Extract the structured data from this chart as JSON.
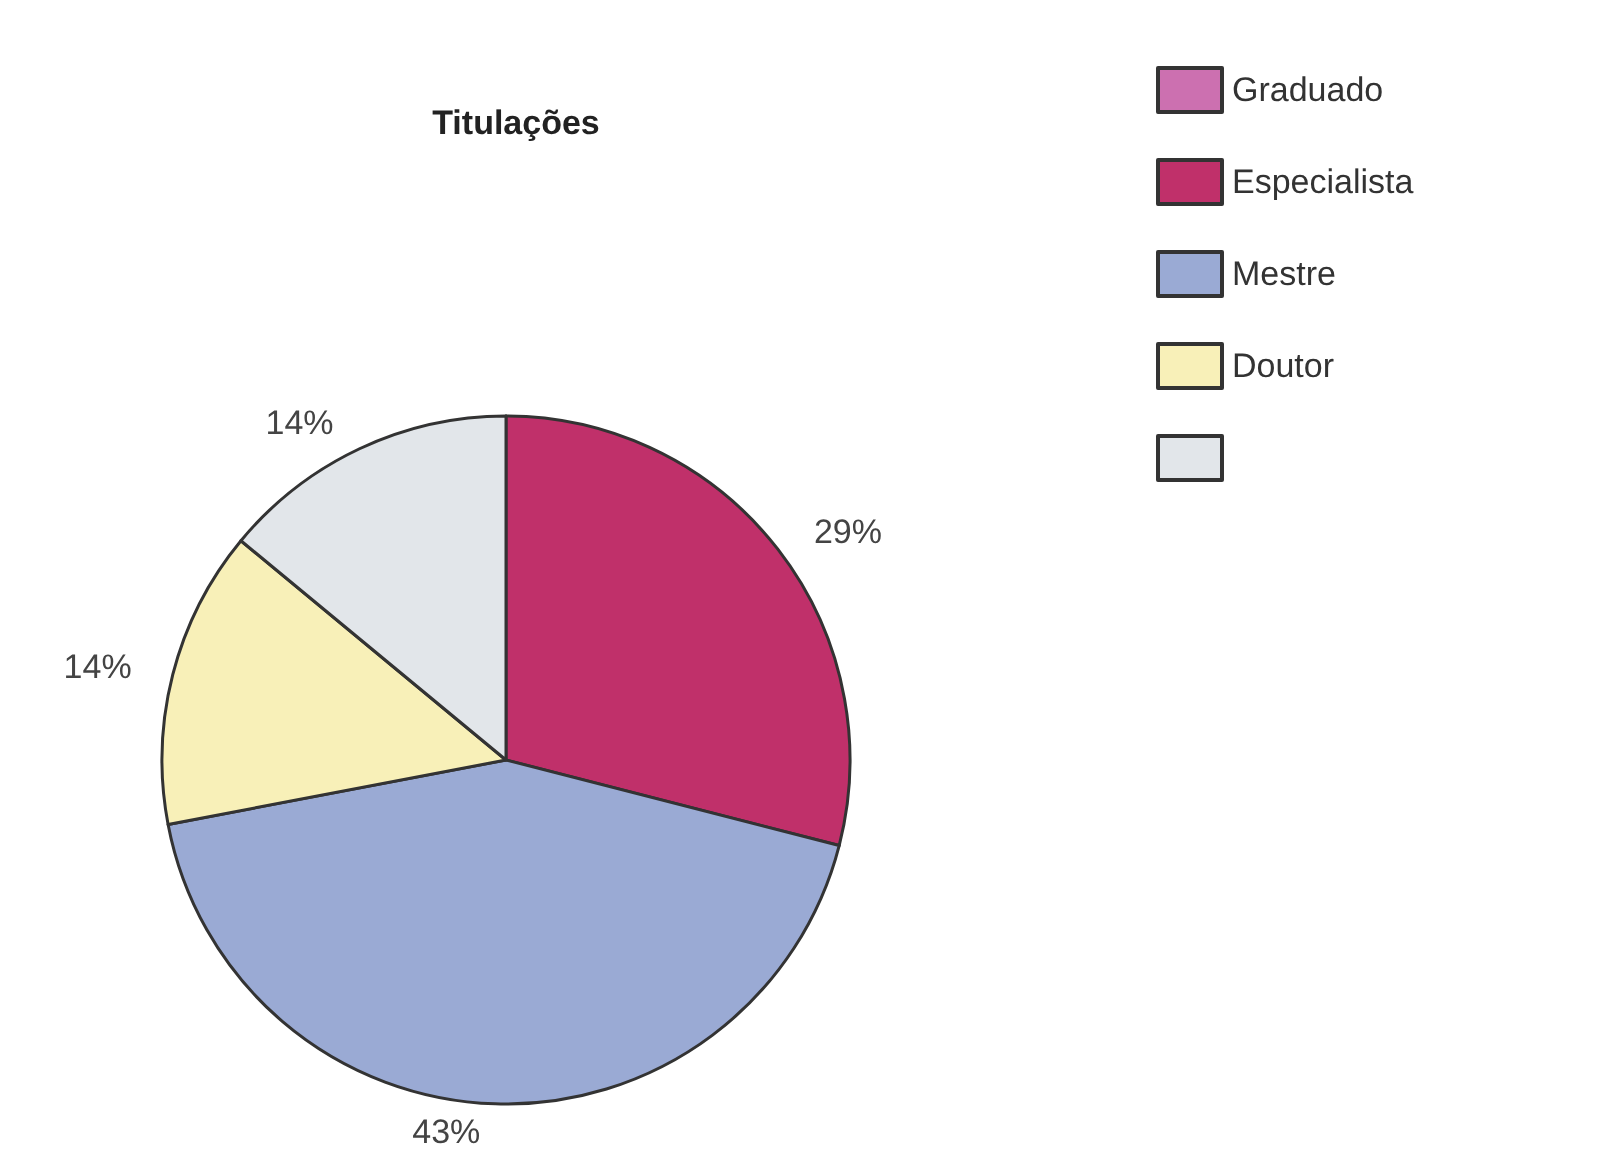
{
  "chart_data": {
    "type": "pie",
    "title": "Titulações",
    "categories": [
      "Graduado",
      "Especialista",
      "Mestre",
      "Doutor",
      null
    ],
    "values": [
      0,
      29,
      43,
      14,
      14
    ],
    "colors": [
      "#cc70b0",
      "#c0306a",
      "#9aaad4",
      "#f8f0b8",
      "#e2e6ea"
    ],
    "legend": "top right",
    "value_labels": [
      null,
      "29%",
      "43%",
      "14%",
      "14%"
    ]
  }
}
